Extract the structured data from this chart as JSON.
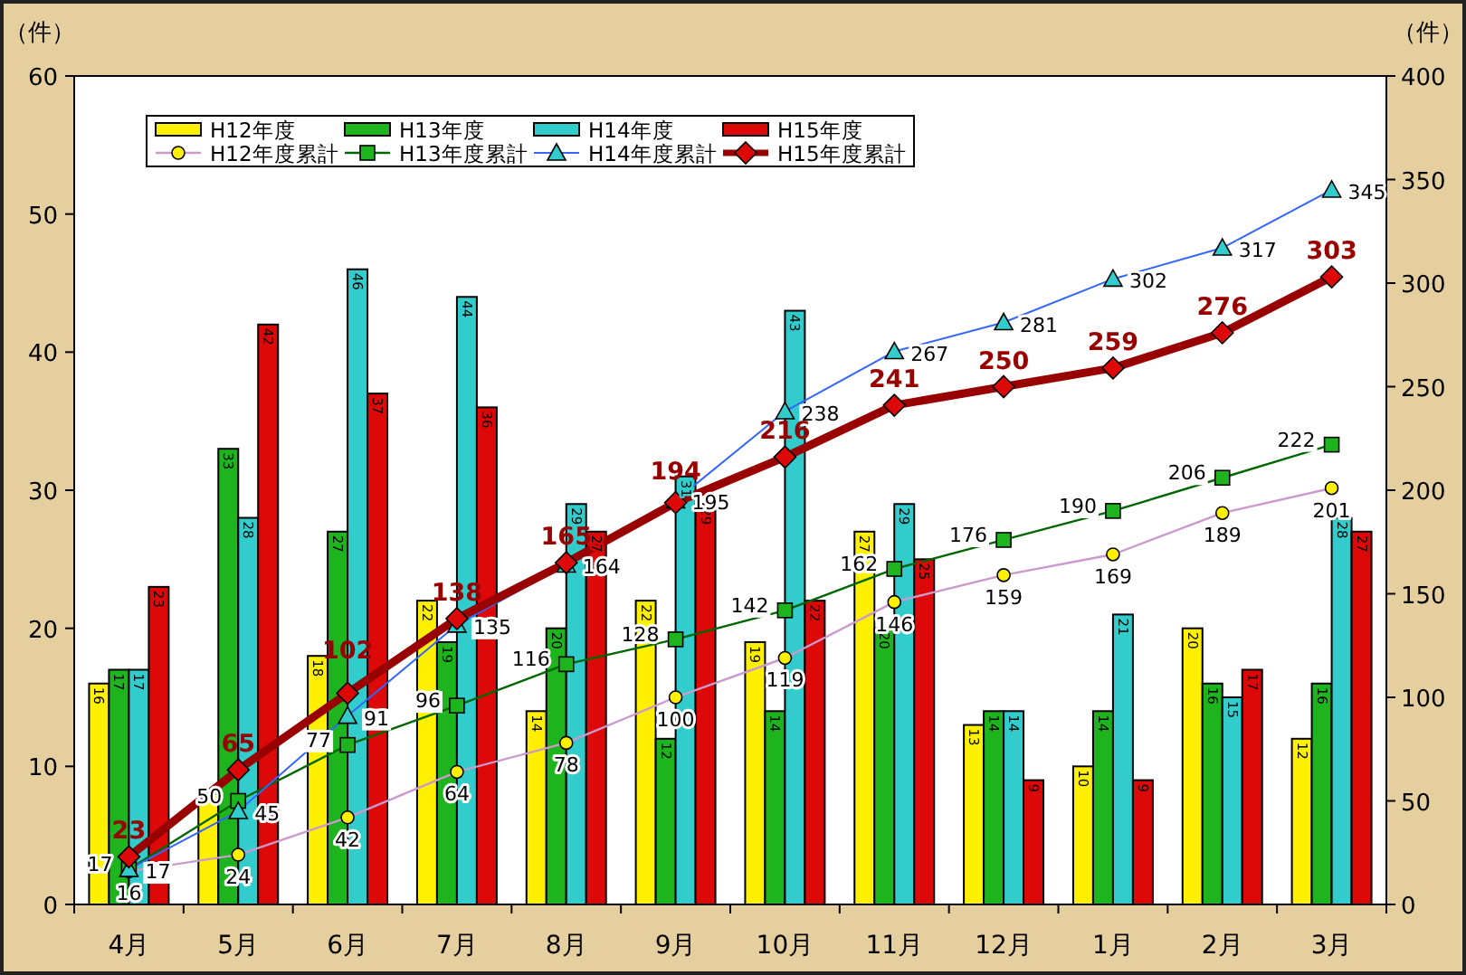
{
  "chart_data": {
    "type": "bar",
    "ylabel": "（件）",
    "y2label": "（件）",
    "categories": [
      "4月",
      "5月",
      "6月",
      "7月",
      "8月",
      "9月",
      "10月",
      "11月",
      "12月",
      "1月",
      "2月",
      "3月"
    ],
    "series": [
      {
        "name": "H12年度",
        "color": "#fff000",
        "values": [
          16,
          8,
          18,
          22,
          14,
          22,
          19,
          27,
          13,
          10,
          20,
          12
        ],
        "value_labels": [
          "16",
          null,
          "18",
          "22",
          "14",
          "22",
          "19",
          "27",
          "13",
          "10",
          "20",
          "12"
        ]
      },
      {
        "name": "H13年度",
        "color": "#1eb41e",
        "values": [
          17,
          33,
          27,
          19,
          20,
          12,
          14,
          20,
          14,
          14,
          16,
          16
        ]
      },
      {
        "name": "H14年度",
        "color": "#33cccc",
        "values": [
          17,
          28,
          46,
          44,
          29,
          31,
          43,
          29,
          14,
          21,
          15,
          28
        ]
      },
      {
        "name": "H15年度",
        "color": "#dd0808",
        "values": [
          23,
          42,
          37,
          36,
          27,
          29,
          22,
          25,
          9,
          9,
          17,
          27
        ]
      },
      {
        "name": "H12年度累計",
        "type": "line",
        "axis": "y2",
        "marker": "circle",
        "color": "#cc99cc",
        "values": [
          16,
          24,
          42,
          64,
          78,
          100,
          119,
          146,
          159,
          169,
          189,
          201
        ]
      },
      {
        "name": "H13年度累計",
        "type": "line",
        "axis": "y2",
        "marker": "square",
        "color": "#006600",
        "values": [
          17,
          50,
          77,
          96,
          116,
          128,
          142,
          162,
          176,
          190,
          206,
          222
        ]
      },
      {
        "name": "H14年度累計",
        "type": "line",
        "axis": "y2",
        "marker": "triangle",
        "color": "#3366ff",
        "values": [
          17,
          45,
          91,
          135,
          164,
          195,
          238,
          267,
          281,
          302,
          317,
          345
        ]
      },
      {
        "name": "H15年度累計",
        "type": "line",
        "axis": "y2",
        "marker": "diamond",
        "color": "#990000",
        "values": [
          23,
          65,
          102,
          138,
          165,
          194,
          216,
          241,
          250,
          259,
          276,
          303
        ]
      }
    ],
    "ylim": [
      0,
      60
    ],
    "yticks": [
      0,
      10,
      20,
      30,
      40,
      50,
      60
    ],
    "y2lim": [
      0,
      400
    ],
    "y2ticks": [
      0,
      50,
      100,
      150,
      200,
      250,
      300,
      350,
      400
    ],
    "data_labels": true,
    "legend": "top left",
    "line_style": "solid"
  }
}
